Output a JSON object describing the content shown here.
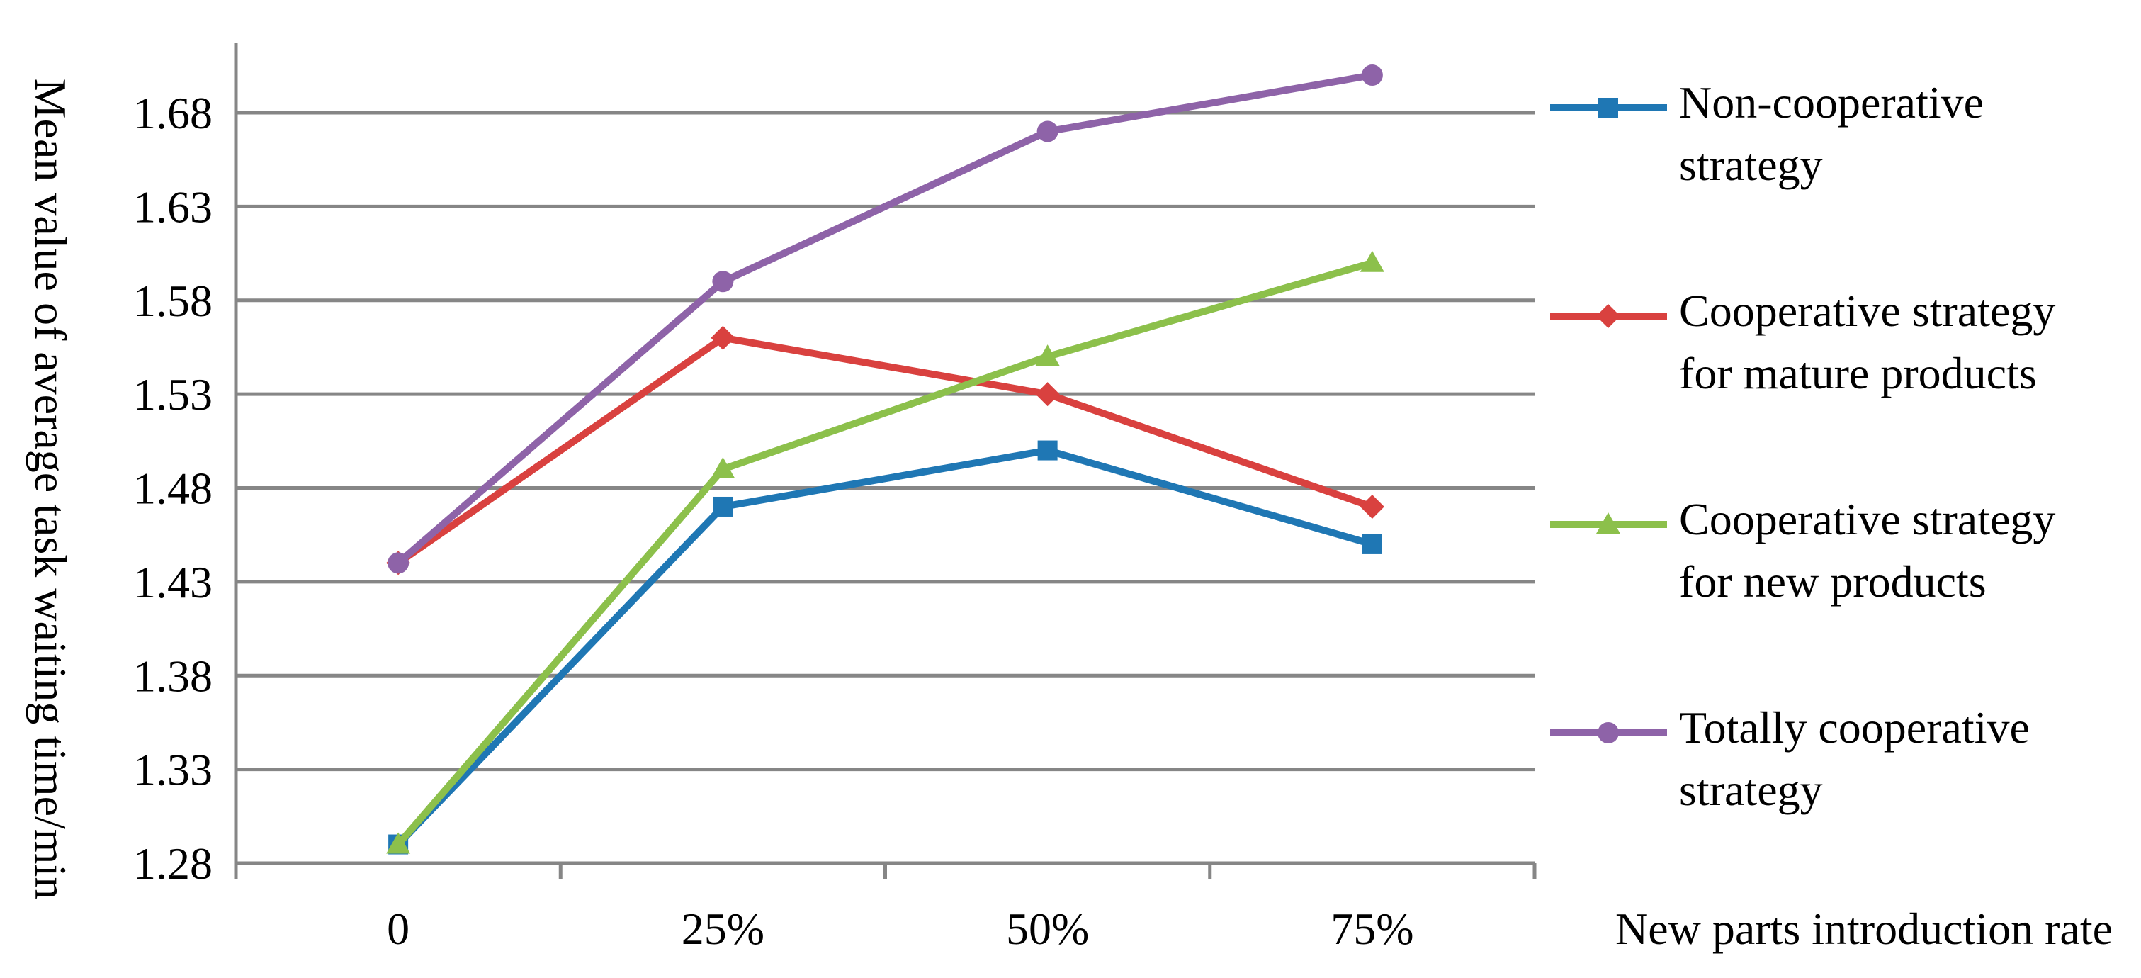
{
  "chart_data": {
    "type": "line",
    "categories": [
      "0",
      "25%",
      "50%",
      "75%"
    ],
    "xlabel": "New parts introduction rate",
    "ylabel": "Mean value of average task waiting time/min",
    "ylim": [
      1.28,
      1.68
    ],
    "yticks": [
      "1.28",
      "1.33",
      "1.38",
      "1.43",
      "1.48",
      "1.53",
      "1.58",
      "1.63",
      "1.68"
    ],
    "grid": true,
    "legend_position": "right",
    "series": [
      {
        "name": "Non-cooperative strategy",
        "name_lines": [
          "Non-cooperative",
          "strategy"
        ],
        "marker": "square",
        "color": "#1f77b4",
        "values": [
          1.29,
          1.47,
          1.5,
          1.45
        ]
      },
      {
        "name": "Cooperative strategy for mature products",
        "name_lines": [
          "Cooperative strategy",
          "for mature products"
        ],
        "marker": "diamond",
        "color": "#d9413f",
        "values": [
          1.44,
          1.56,
          1.53,
          1.47
        ]
      },
      {
        "name": "Cooperative strategy for new products",
        "name_lines": [
          "Cooperative strategy",
          "for new products"
        ],
        "marker": "triangle",
        "color": "#8cc04b",
        "values": [
          1.29,
          1.49,
          1.55,
          1.6
        ]
      },
      {
        "name": "Totally cooperative strategy",
        "name_lines": [
          "Totally cooperative",
          "strategy"
        ],
        "marker": "circle",
        "color": "#8e63a8",
        "values": [
          1.44,
          1.59,
          1.67,
          1.7
        ]
      }
    ]
  }
}
